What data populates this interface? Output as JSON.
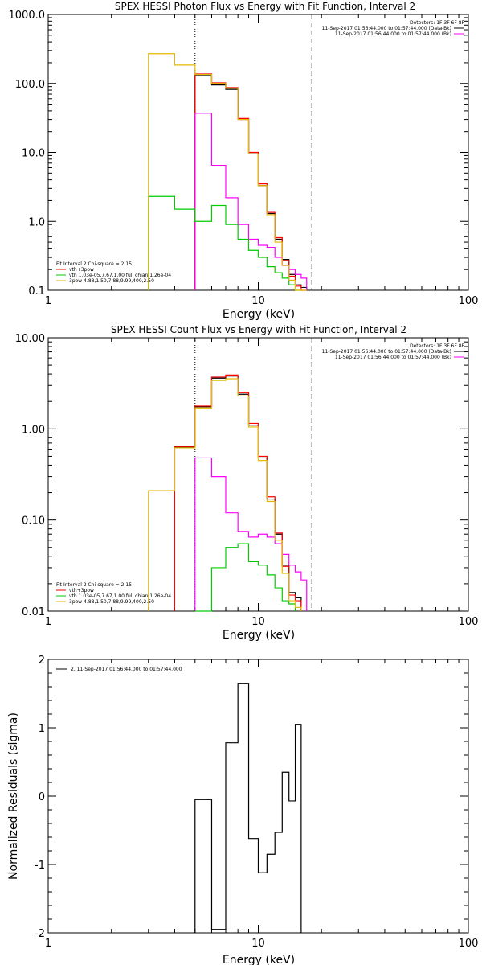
{
  "colors": {
    "black": "#000000",
    "red": "#ff0000",
    "magenta": "#ff00ff",
    "green": "#00cc00",
    "yellow": "#e6b800"
  },
  "chart_data": [
    {
      "type": "line",
      "id": "photon",
      "title": "SPEX HESSI Photon Flux vs Energy with Fit Function, Interval 2",
      "xlabel": "Energy (keV)",
      "ylabel": "",
      "x_scale": "log",
      "y_scale": "log",
      "xlim": [
        1,
        100
      ],
      "ylim": [
        0.1,
        1000
      ],
      "x_ticks": [
        {
          "v": 1,
          "label": "1"
        },
        {
          "v": 10,
          "label": "10"
        },
        {
          "v": 100,
          "label": "100"
        }
      ],
      "y_ticks": [
        {
          "v": 0.1,
          "label": "0.1"
        },
        {
          "v": 1,
          "label": "1.0"
        },
        {
          "v": 10,
          "label": "10.0"
        },
        {
          "v": 100,
          "label": "100.0"
        },
        {
          "v": 1000,
          "label": "1000.0"
        }
      ],
      "vlines": [
        {
          "x": 5.0,
          "style": "dotted"
        },
        {
          "x": 18.0,
          "style": "dashed"
        }
      ],
      "legend_right": [
        "Detectors: 1F 3F 6F 8F",
        "11-Sep-2017 01:56:44.000 to 01:57:44.000 (Data-Bk)",
        "11-Sep-2017 01:56:44.000 to 01:57:44.000 (Bk)"
      ],
      "legend_left": [
        "Fit Interval 2   Chi-square = 2.15",
        "vth+3pow",
        "vth 1.03e-05,7.67,1.00  full chian 1.26e-04",
        "3pow 4.88,1.50,7.88,9.99,400,2.50"
      ],
      "edges": [
        3.0,
        4.0,
        5.0,
        6.0,
        7.0,
        8.0,
        9.0,
        10.0,
        11.0,
        12.0,
        13.0,
        14.0,
        15.0,
        16.0,
        17.0,
        18.0
      ],
      "series": [
        {
          "name": "",
          "color": "black",
          "values": [
            null,
            null,
            130,
            95,
            82,
            30,
            9.5,
            3.3,
            1.3,
            0.55,
            0.28,
            0.17,
            0.12,
            0.11,
            null
          ]
        },
        {
          "name": "",
          "color": "red",
          "values": [
            null,
            null,
            137,
            102,
            87,
            31,
            10,
            3.5,
            1.35,
            0.58,
            0.27,
            0.16,
            0.115,
            0.1,
            null
          ]
        },
        {
          "name": "",
          "color": "magenta",
          "values": [
            null,
            null,
            37,
            6.5,
            2.2,
            0.9,
            0.55,
            0.45,
            0.42,
            0.3,
            0.23,
            0.2,
            0.17,
            0.15,
            null
          ]
        },
        {
          "name": "",
          "color": "green",
          "values": [
            2.3,
            1.5,
            1.0,
            1.7,
            0.9,
            0.55,
            0.38,
            0.3,
            0.22,
            0.18,
            0.15,
            0.12,
            0.1,
            null,
            null
          ]
        },
        {
          "name": "",
          "color": "yellow",
          "values": [
            270,
            185,
            135,
            100,
            85,
            30,
            9.5,
            3.3,
            1.25,
            0.5,
            0.23,
            0.14,
            0.1,
            0.09,
            null
          ]
        }
      ]
    },
    {
      "type": "line",
      "id": "count",
      "title": "SPEX HESSI Count Flux vs Energy with Fit Function, Interval 2",
      "xlabel": "Energy (keV)",
      "ylabel": "",
      "x_scale": "log",
      "y_scale": "log",
      "xlim": [
        1,
        100
      ],
      "ylim": [
        0.01,
        10
      ],
      "x_ticks": [
        {
          "v": 1,
          "label": "1"
        },
        {
          "v": 10,
          "label": "10"
        },
        {
          "v": 100,
          "label": "100"
        }
      ],
      "y_ticks": [
        {
          "v": 0.01,
          "label": "0.01"
        },
        {
          "v": 0.1,
          "label": "0.10"
        },
        {
          "v": 1,
          "label": "1.00"
        },
        {
          "v": 10,
          "label": "10.00"
        }
      ],
      "vlines": [
        {
          "x": 5.0,
          "style": "dotted"
        },
        {
          "x": 18.0,
          "style": "dashed"
        }
      ],
      "legend_right": [
        "Detectors: 1F 3F 6F 8F",
        "11-Sep-2017 01:56:44.000 to 01:57:44.000 (Data-Bk)",
        "11-Sep-2017 01:56:44.000 to 01:57:44.000 (Bk)"
      ],
      "legend_left": [
        "Fit Interval 2   Chi-square = 2.15",
        "vth+3pow",
        "vth 1.03e-05,7.67,1.00  full chian 1.26e-04",
        "3pow 4.88,1.50,7.88,9.99,400,2.50"
      ],
      "edges": [
        3.0,
        4.0,
        5.0,
        6.0,
        7.0,
        8.0,
        9.0,
        10.0,
        11.0,
        12.0,
        13.0,
        14.0,
        15.0,
        16.0,
        17.0,
        18.0
      ],
      "series": [
        {
          "name": "",
          "color": "black",
          "values": [
            null,
            0.63,
            1.75,
            3.6,
            3.8,
            2.4,
            1.1,
            0.48,
            0.17,
            0.07,
            0.032,
            0.016,
            0.014,
            null,
            null
          ]
        },
        {
          "name": "",
          "color": "red",
          "values": [
            null,
            0.64,
            1.78,
            3.7,
            3.9,
            2.5,
            1.15,
            0.5,
            0.18,
            0.072,
            0.031,
            0.015,
            0.013,
            null,
            null
          ]
        },
        {
          "name": "",
          "color": "magenta",
          "values": [
            null,
            null,
            0.48,
            0.3,
            0.12,
            0.075,
            0.065,
            0.07,
            0.065,
            0.055,
            0.042,
            0.032,
            0.027,
            0.022,
            null
          ]
        },
        {
          "name": "",
          "color": "green",
          "values": [
            null,
            null,
            0.01,
            0.03,
            0.05,
            0.055,
            0.035,
            0.032,
            0.025,
            0.018,
            0.013,
            0.012,
            null,
            null,
            null
          ]
        },
        {
          "name": "",
          "color": "yellow",
          "values": [
            0.21,
            0.62,
            1.7,
            3.4,
            3.55,
            2.3,
            1.05,
            0.45,
            0.16,
            0.06,
            0.026,
            0.013,
            0.011,
            null,
            null
          ]
        }
      ]
    },
    {
      "type": "line",
      "id": "residuals",
      "title": "",
      "xlabel": "Energy (keV)",
      "ylabel": "Normalized Residuals (sigma)",
      "x_scale": "log",
      "y_scale": "linear",
      "xlim": [
        1,
        100
      ],
      "ylim": [
        -2,
        2
      ],
      "x_ticks": [
        {
          "v": 1,
          "label": "1"
        },
        {
          "v": 10,
          "label": "10"
        },
        {
          "v": 100,
          "label": "100"
        }
      ],
      "y_ticks": [
        {
          "v": -2,
          "label": "-2"
        },
        {
          "v": -1,
          "label": "-1"
        },
        {
          "v": 0,
          "label": "0"
        },
        {
          "v": 1,
          "label": "1"
        },
        {
          "v": 2,
          "label": "2"
        }
      ],
      "legend_left": [
        "2, 11-Sep-2017 01:56:44.000 to 01:57:44.000"
      ],
      "edges": [
        5.0,
        6.0,
        7.0,
        8.0,
        9.0,
        10.0,
        11.0,
        12.0,
        13.0,
        14.0,
        15.0,
        16.0,
        17.0,
        18.0
      ],
      "series": [
        {
          "name": "",
          "color": "black",
          "values": [
            -0.05,
            -1.95,
            0.78,
            1.65,
            -0.62,
            -1.12,
            -0.85,
            -0.53,
            0.35,
            -0.07,
            1.05
          ]
        }
      ]
    }
  ]
}
